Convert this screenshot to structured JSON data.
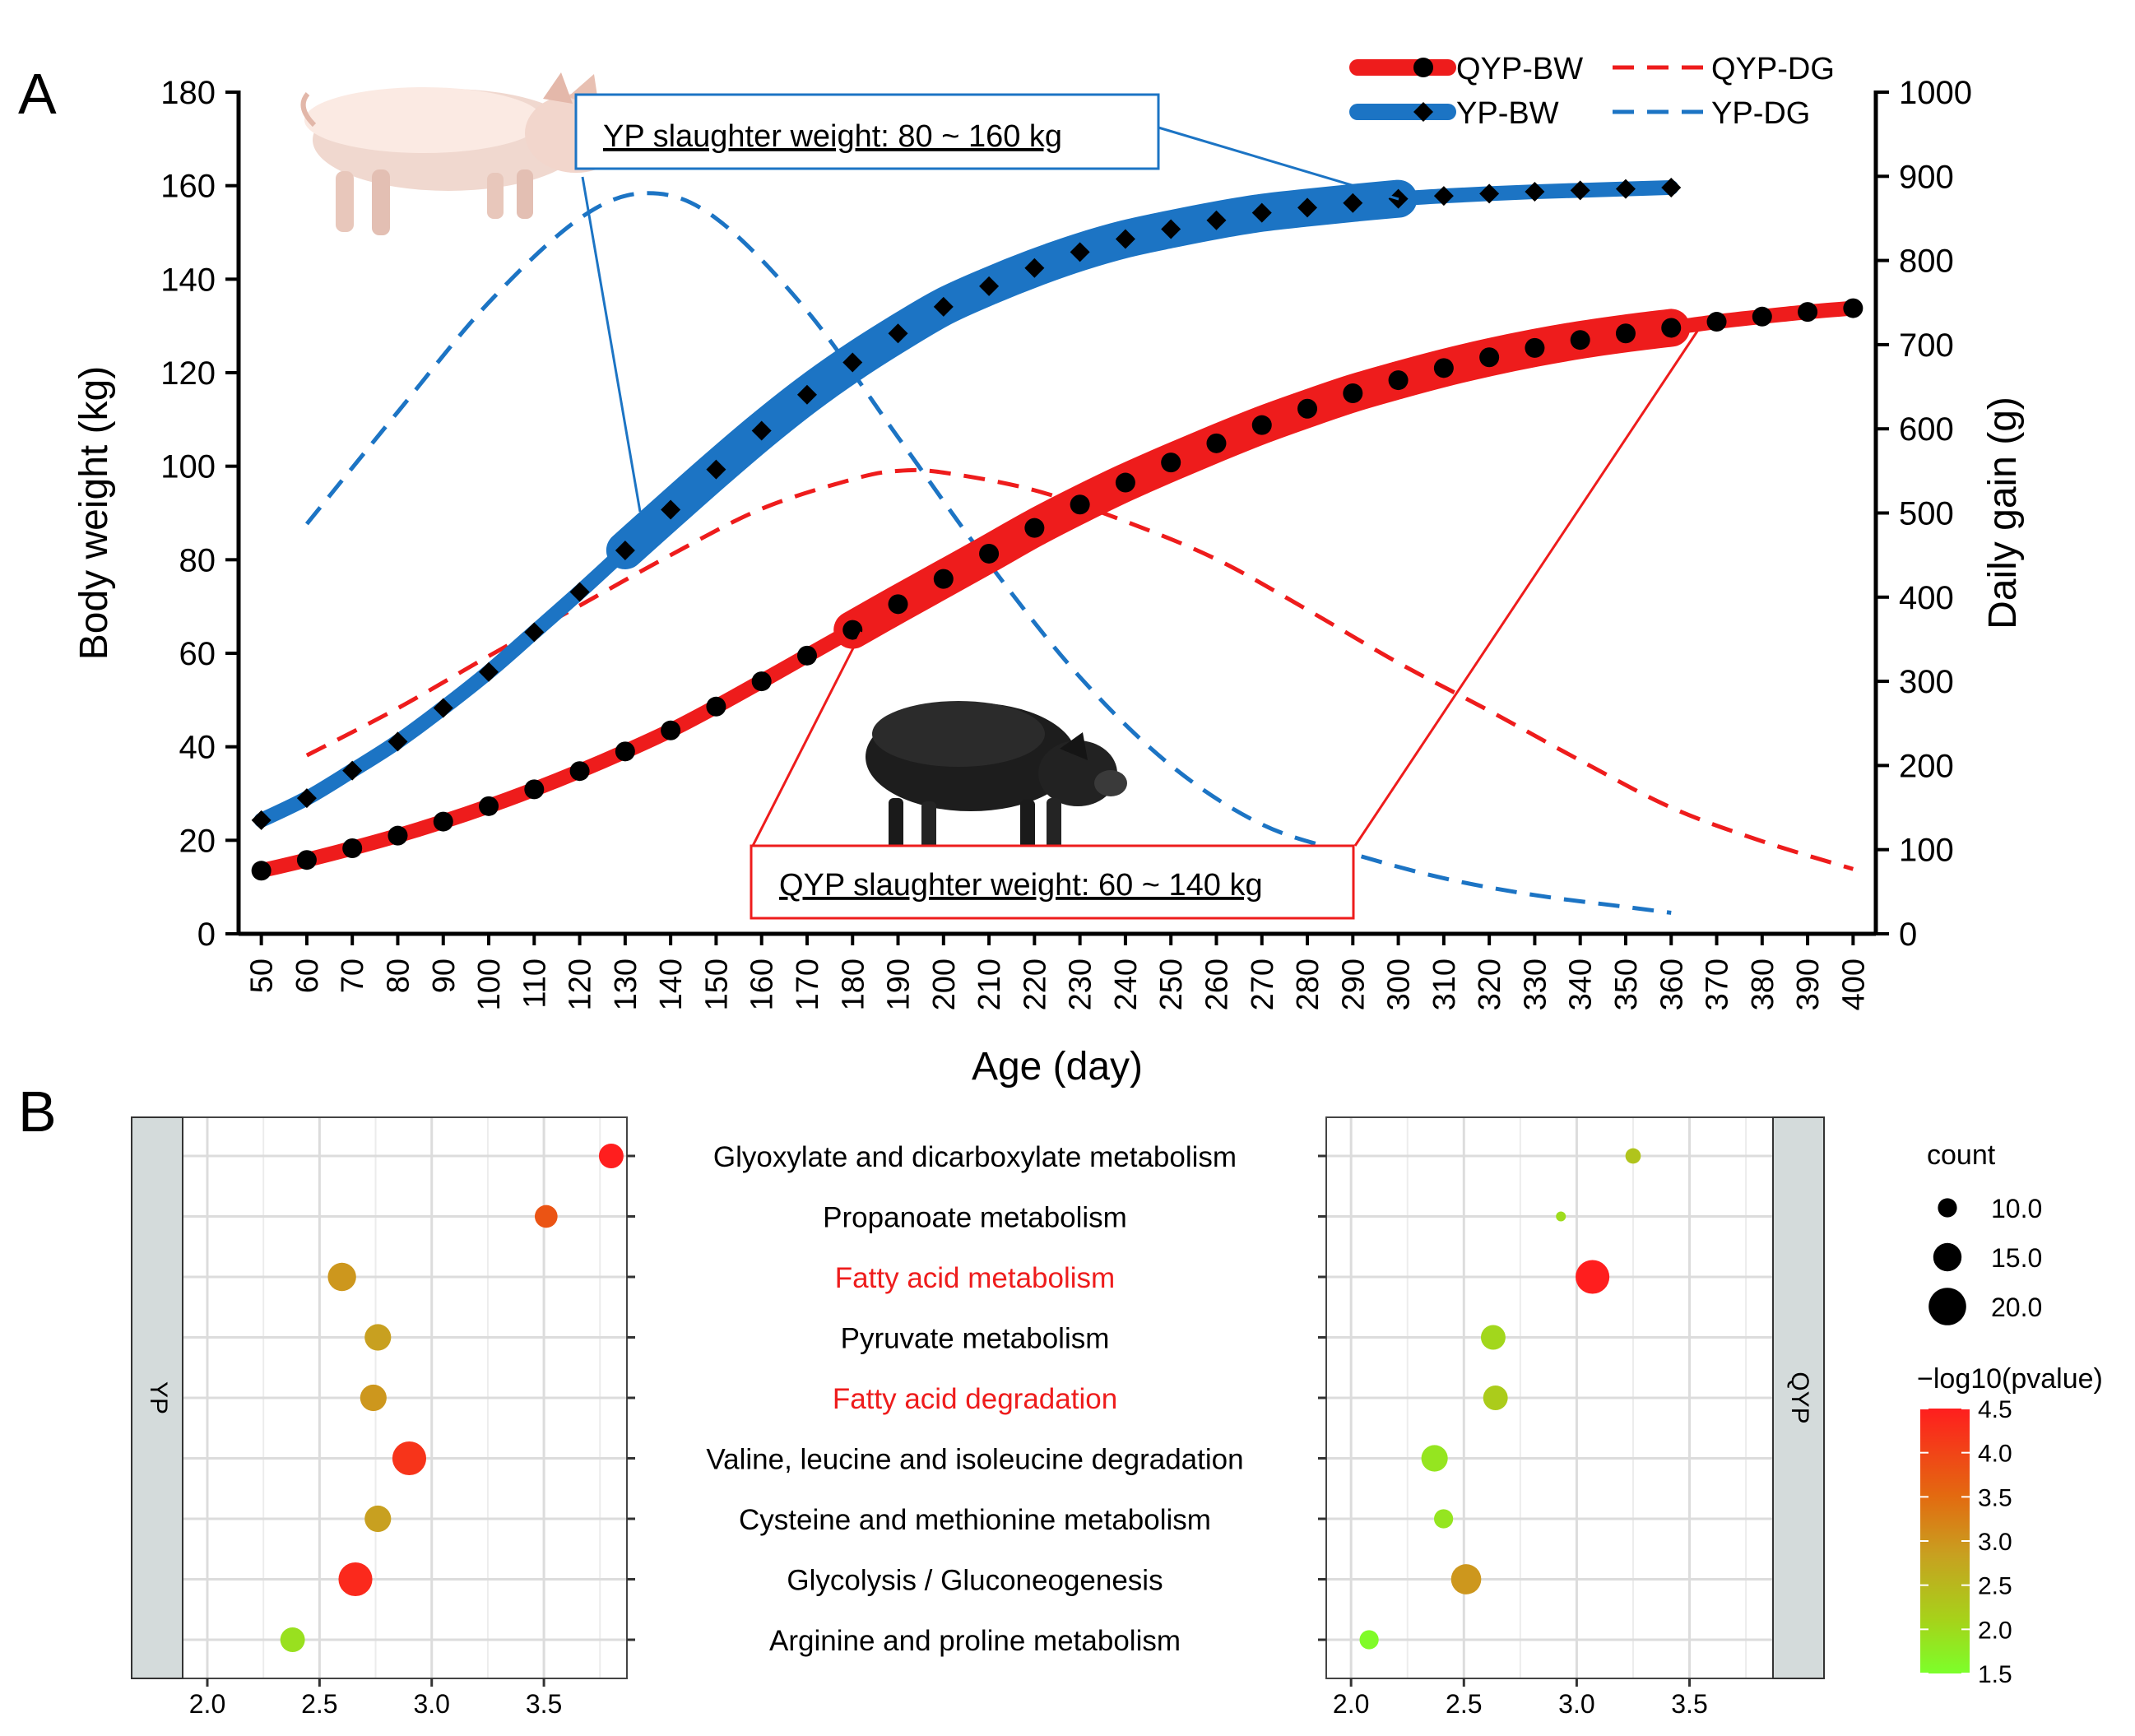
{
  "panel_a": {
    "label": "A",
    "yp_callout": "YP slaughter weight: 80 ~ 160 kg",
    "qyp_callout": "QYP slaughter weight: 60 ~ 140 kg",
    "chart_data": {
      "type": "line",
      "xlabel": "Age (day)",
      "ylabel": "Body weight (kg)",
      "y2label": "Daily gain (g)",
      "xlim": [
        45,
        405
      ],
      "ylim": [
        0,
        180
      ],
      "y2lim": [
        0,
        1000
      ],
      "x_ticks": [
        50,
        60,
        70,
        80,
        90,
        100,
        110,
        120,
        130,
        140,
        150,
        160,
        170,
        180,
        190,
        200,
        210,
        220,
        230,
        240,
        250,
        260,
        270,
        280,
        290,
        300,
        310,
        320,
        330,
        340,
        350,
        360,
        370,
        380,
        390,
        400
      ],
      "y_ticks": [
        0,
        20,
        40,
        60,
        80,
        100,
        120,
        140,
        160,
        180
      ],
      "y2_ticks": [
        0,
        100,
        200,
        300,
        400,
        500,
        600,
        700,
        800,
        900,
        1000
      ],
      "legend": [
        "QYP-BW",
        "QYP-DG",
        "YP-BW",
        "YP-DG"
      ],
      "series": [
        {
          "name": "QYP-BW",
          "axis": "left",
          "color": "#ee1c1c",
          "marker": "circle",
          "highlight_range": [
            180,
            360
          ],
          "x": [
            50,
            60,
            70,
            80,
            90,
            100,
            110,
            120,
            130,
            140,
            150,
            160,
            170,
            180,
            190,
            200,
            210,
            220,
            230,
            240,
            250,
            260,
            270,
            280,
            290,
            300,
            310,
            320,
            330,
            340,
            350,
            360,
            370,
            380,
            390,
            400
          ],
          "values": [
            13.5,
            15.8,
            18.3,
            21.0,
            24.0,
            27.3,
            30.9,
            34.8,
            39.0,
            43.5,
            48.6,
            54.0,
            59.5,
            65.0,
            70.5,
            75.9,
            81.3,
            86.8,
            91.8,
            96.5,
            100.8,
            104.9,
            108.8,
            112.3,
            115.6,
            118.4,
            121.0,
            123.3,
            125.3,
            127.0,
            128.4,
            129.6,
            130.9,
            132.0,
            133.0,
            133.8
          ]
        },
        {
          "name": "YP-BW",
          "axis": "left",
          "color": "#1c74c4",
          "marker": "diamond",
          "highlight_range": [
            130,
            300
          ],
          "x": [
            50,
            60,
            70,
            80,
            90,
            100,
            110,
            120,
            130,
            140,
            150,
            160,
            170,
            180,
            190,
            200,
            210,
            220,
            230,
            240,
            250,
            260,
            270,
            280,
            290,
            300,
            310,
            320,
            330,
            340,
            350,
            360
          ],
          "values": [
            24.3,
            29.0,
            34.9,
            41.1,
            48.3,
            56.0,
            64.5,
            73.1,
            82.0,
            90.7,
            99.3,
            107.6,
            115.3,
            122.2,
            128.4,
            134.1,
            138.5,
            142.4,
            145.8,
            148.6,
            150.7,
            152.6,
            154.2,
            155.3,
            156.3,
            157.2,
            157.8,
            158.3,
            158.7,
            159.0,
            159.3,
            159.6
          ]
        },
        {
          "name": "QYP-DG",
          "axis": "right",
          "color": "#ee1c1c",
          "dash": true,
          "x": [
            60,
            80,
            100,
            120,
            140,
            160,
            180,
            190,
            200,
            220,
            240,
            260,
            280,
            300,
            320,
            340,
            360,
            380,
            400
          ],
          "values": [
            212,
            268,
            330,
            390,
            450,
            505,
            540,
            550,
            548,
            527,
            490,
            445,
            385,
            322,
            265,
            206,
            150,
            110,
            77
          ]
        },
        {
          "name": "YP-DG",
          "axis": "right",
          "color": "#1c74c4",
          "dash": true,
          "x": [
            60,
            80,
            100,
            120,
            135,
            150,
            170,
            190,
            210,
            230,
            250,
            270,
            290,
            310,
            330,
            350,
            360
          ],
          "values": [
            487,
            620,
            750,
            850,
            880,
            850,
            740,
            590,
            440,
            305,
            200,
            130,
            95,
            66,
            46,
            32,
            25
          ]
        }
      ]
    }
  },
  "panel_b": {
    "label": "B",
    "left_facet": "YP",
    "right_facet": "QYP",
    "size_legend_title": "count",
    "color_legend_title": "−log10(pvalue)",
    "chart_data": {
      "type": "scatter",
      "x_ticks": [
        2.0,
        2.5,
        3.0,
        3.5
      ],
      "xlim": [
        1.89,
        3.87
      ],
      "size_legend": [
        10.0,
        15.0,
        20.0
      ],
      "color_legend_ticks": [
        4.5,
        4.0,
        3.5,
        3.0,
        2.5,
        2.0,
        1.5
      ],
      "color_range": [
        1.5,
        4.5
      ],
      "categories": [
        {
          "label": "Glyoxylate and dicarboxylate metabolism",
          "highlight": false
        },
        {
          "label": "Propanoate metabolism",
          "highlight": false
        },
        {
          "label": "Fatty acid metabolism",
          "highlight": true
        },
        {
          "label": "Pyruvate metabolism",
          "highlight": false
        },
        {
          "label": "Fatty acid degradation",
          "highlight": true
        },
        {
          "label": "Valine, leucine and isoleucine degradation",
          "highlight": false
        },
        {
          "label": "Cysteine and methionine metabolism",
          "highlight": false
        },
        {
          "label": "Glycolysis / Gluconeogenesis",
          "highlight": false
        },
        {
          "label": "Arginine and proline metabolism",
          "highlight": false
        }
      ],
      "series": [
        {
          "name": "YP",
          "x": [
            3.8,
            3.51,
            2.6,
            2.76,
            2.74,
            2.9,
            2.76,
            2.66,
            2.38
          ],
          "count": [
            13,
            12,
            15,
            14,
            14,
            18,
            14,
            18,
            13
          ],
          "neglog10p": [
            4.5,
            4.0,
            3.3,
            3.2,
            3.3,
            4.3,
            3.2,
            4.4,
            2.2
          ]
        },
        {
          "name": "QYP",
          "x": [
            3.25,
            2.93,
            3.07,
            2.63,
            2.64,
            2.37,
            2.41,
            2.51,
            2.08
          ],
          "count": [
            8,
            5,
            18,
            13,
            13,
            14,
            10,
            16,
            10
          ],
          "neglog10p": [
            2.7,
            2.3,
            4.5,
            2.4,
            2.6,
            2.1,
            2.1,
            3.3,
            1.6
          ]
        }
      ]
    }
  }
}
